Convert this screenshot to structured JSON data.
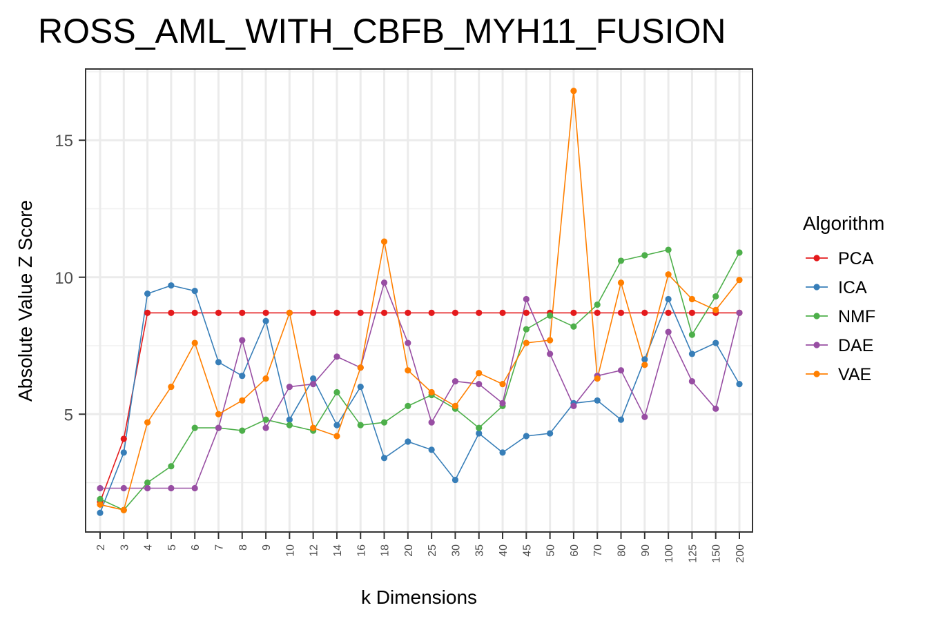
{
  "chart_data": {
    "type": "line",
    "title": "ROSS_AML_WITH_CBFB_MYH11_FUSION",
    "xlabel": "k Dimensions",
    "ylabel": "Absolute Value Z Score",
    "categories": [
      "2",
      "3",
      "4",
      "5",
      "6",
      "7",
      "8",
      "9",
      "10",
      "12",
      "14",
      "16",
      "18",
      "20",
      "25",
      "30",
      "35",
      "40",
      "45",
      "50",
      "60",
      "70",
      "80",
      "90",
      "100",
      "125",
      "150",
      "200"
    ],
    "ylim": [
      0.7,
      17.6
    ],
    "yticks": [
      5,
      10,
      15
    ],
    "grid": true,
    "legend": {
      "title": "Algorithm",
      "position": "right"
    },
    "series": [
      {
        "name": "PCA",
        "color": "#e41a1c",
        "values": [
          1.8,
          4.1,
          8.7,
          8.7,
          8.7,
          8.7,
          8.7,
          8.7,
          8.7,
          8.7,
          8.7,
          8.7,
          8.7,
          8.7,
          8.7,
          8.7,
          8.7,
          8.7,
          8.7,
          8.7,
          8.7,
          8.7,
          8.7,
          8.7,
          8.7,
          8.7,
          8.7,
          8.7
        ]
      },
      {
        "name": "ICA",
        "color": "#377eb8",
        "values": [
          1.4,
          3.6,
          9.4,
          9.7,
          9.5,
          6.9,
          6.4,
          8.4,
          4.8,
          6.3,
          4.6,
          6.0,
          3.4,
          4.0,
          3.7,
          2.6,
          4.3,
          3.6,
          4.2,
          4.3,
          5.4,
          5.5,
          4.8,
          7.0,
          9.2,
          7.2,
          7.6,
          6.1
        ]
      },
      {
        "name": "NMF",
        "color": "#4daf4a",
        "values": [
          1.9,
          1.5,
          2.5,
          3.1,
          4.5,
          4.5,
          4.4,
          4.8,
          4.6,
          4.4,
          5.8,
          4.6,
          4.7,
          5.3,
          5.7,
          5.2,
          4.5,
          5.3,
          8.1,
          8.6,
          8.2,
          9.0,
          10.6,
          10.8,
          11.0,
          7.9,
          9.3,
          10.9
        ]
      },
      {
        "name": "DAE",
        "color": "#984ea3",
        "values": [
          2.3,
          2.3,
          2.3,
          2.3,
          2.3,
          4.5,
          7.7,
          4.5,
          6.0,
          6.1,
          7.1,
          6.7,
          9.8,
          7.6,
          4.7,
          6.2,
          6.1,
          5.4,
          9.2,
          7.2,
          5.3,
          6.4,
          6.6,
          4.9,
          8.0,
          6.2,
          5.2,
          8.7
        ]
      },
      {
        "name": "VAE",
        "color": "#ff7f00",
        "values": [
          1.7,
          1.5,
          4.7,
          6.0,
          7.6,
          5.0,
          5.5,
          6.3,
          8.7,
          4.5,
          4.2,
          6.7,
          11.3,
          6.6,
          5.8,
          5.3,
          6.5,
          6.1,
          7.6,
          7.7,
          16.8,
          6.3,
          9.8,
          6.8,
          10.1,
          9.2,
          8.8,
          9.9
        ]
      }
    ]
  }
}
